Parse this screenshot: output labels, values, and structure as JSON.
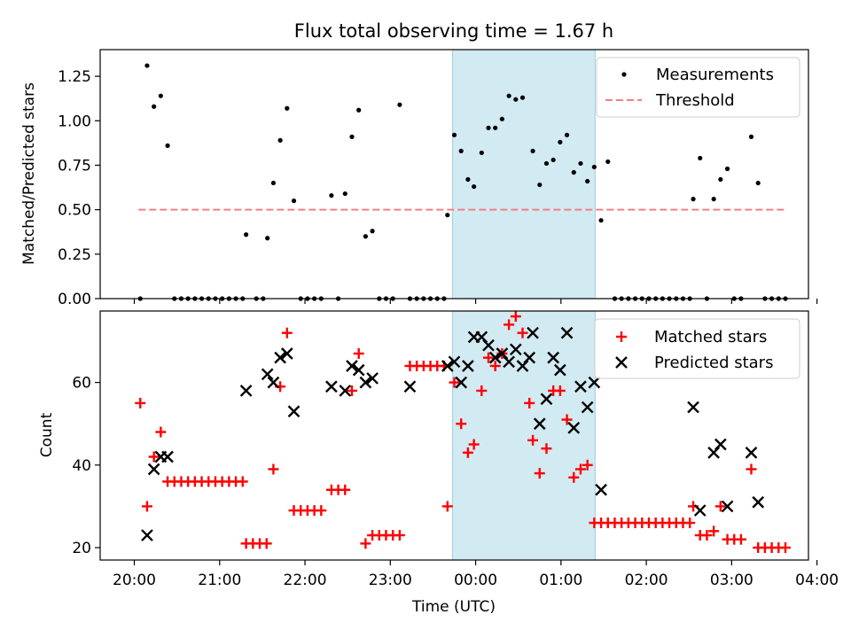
{
  "chart_data": [
    {
      "type": "scatter",
      "title": "Flux total observing time = 1.67 h",
      "xlabel": "",
      "ylabel": "Matched/Predicted stars",
      "xlim": [
        -0.4,
        7.9
      ],
      "ylim": [
        0,
        1.4
      ],
      "yticks": [
        0.0,
        0.25,
        0.5,
        0.75,
        1.0,
        1.25
      ],
      "ytick_labels": [
        "0.00",
        "0.25",
        "0.50",
        "0.75",
        "1.00",
        "1.25"
      ],
      "xticks": [
        0,
        1,
        2,
        3,
        4,
        5,
        6,
        7,
        8
      ],
      "shaded_span": [
        3.73,
        5.4
      ],
      "shaded_color": "#add8e6",
      "legend_placement": "top-right",
      "threshold": {
        "name": "Threshold",
        "y": 0.5,
        "x_range": [
          0.05,
          7.65
        ],
        "color": "#f08080"
      },
      "series": [
        {
          "name": "Measurements",
          "color": "#000000",
          "marker": "dot",
          "x": [
            0.07,
            0.15,
            0.23,
            0.31,
            0.39,
            0.47,
            0.55,
            0.63,
            0.71,
            0.79,
            0.87,
            0.95,
            1.03,
            1.11,
            1.19,
            1.27,
            1.31,
            1.43,
            1.51,
            1.56,
            1.63,
            1.71,
            1.79,
            1.87,
            1.95,
            2.03,
            2.11,
            2.19,
            2.31,
            2.39,
            2.47,
            2.55,
            2.63,
            2.71,
            2.79,
            2.87,
            2.95,
            3.03,
            3.11,
            3.23,
            3.31,
            3.39,
            3.47,
            3.55,
            3.63,
            3.67,
            3.75,
            3.83,
            3.91,
            3.98,
            4.07,
            4.15,
            4.23,
            4.31,
            4.39,
            4.47,
            4.55,
            4.67,
            4.75,
            4.83,
            4.91,
            4.99,
            5.07,
            5.15,
            5.23,
            5.31,
            5.39,
            5.47,
            5.55,
            5.63,
            5.71,
            5.79,
            5.87,
            5.95,
            6.03,
            6.11,
            6.19,
            6.27,
            6.35,
            6.43,
            6.51,
            6.55,
            6.63,
            6.71,
            6.79,
            6.87,
            6.95,
            7.03,
            7.11,
            7.23,
            7.31,
            7.39,
            7.47,
            7.55,
            7.63
          ],
          "y": [
            0.0,
            1.31,
            1.08,
            1.14,
            0.86,
            0.0,
            0.0,
            0.0,
            0.0,
            0.0,
            0.0,
            0.0,
            0.0,
            0.0,
            0.0,
            0.0,
            0.36,
            0.0,
            0.0,
            0.34,
            0.65,
            0.89,
            1.07,
            0.55,
            0.0,
            0.0,
            0.0,
            0.0,
            0.58,
            0.0,
            0.59,
            0.91,
            1.06,
            0.35,
            0.38,
            0.0,
            0.0,
            0.0,
            1.09,
            0.0,
            0.0,
            0.0,
            0.0,
            0.0,
            0.0,
            0.47,
            0.92,
            0.83,
            0.67,
            0.63,
            0.82,
            0.96,
            0.96,
            1.01,
            1.14,
            1.12,
            1.13,
            0.83,
            0.64,
            0.76,
            0.78,
            0.88,
            0.92,
            0.71,
            0.76,
            0.66,
            0.74,
            0.44,
            0.77,
            0.0,
            0.0,
            0.0,
            0.0,
            0.0,
            0.0,
            0.0,
            0.0,
            0.0,
            0.0,
            0.0,
            0.0,
            0.56,
            0.79,
            0.0,
            0.56,
            0.67,
            0.73,
            0.0,
            0.0,
            0.91,
            0.65,
            0.0,
            0.0,
            0.0,
            0.0
          ]
        }
      ]
    },
    {
      "type": "scatter",
      "title": "",
      "xlabel": "Time (UTC)",
      "ylabel": "Count",
      "xlim": [
        -0.4,
        7.9
      ],
      "ylim": [
        17,
        77.3
      ],
      "yticks": [
        20,
        40,
        60
      ],
      "ytick_labels": [
        "20",
        "40",
        "60"
      ],
      "xticks": [
        0,
        1,
        2,
        3,
        4,
        5,
        6,
        7,
        8
      ],
      "xtick_labels": [
        "20:00",
        "21:00",
        "22:00",
        "23:00",
        "00:00",
        "01:00",
        "02:00",
        "03:00",
        "04:00"
      ],
      "shaded_span": [
        3.73,
        5.4
      ],
      "shaded_color": "#add8e6",
      "legend_placement": "top-right",
      "series": [
        {
          "name": "Matched stars",
          "color": "#ff0000",
          "marker": "plus",
          "x": [
            0.07,
            0.15,
            0.23,
            0.31,
            0.39,
            0.47,
            0.55,
            0.63,
            0.71,
            0.79,
            0.87,
            0.95,
            1.03,
            1.11,
            1.19,
            1.27,
            1.31,
            1.39,
            1.47,
            1.55,
            1.63,
            1.71,
            1.79,
            1.87,
            1.95,
            2.03,
            2.11,
            2.19,
            2.31,
            2.39,
            2.47,
            2.55,
            2.63,
            2.71,
            2.79,
            2.87,
            2.95,
            3.03,
            3.11,
            3.23,
            3.31,
            3.39,
            3.47,
            3.55,
            3.63,
            3.67,
            3.75,
            3.83,
            3.91,
            3.98,
            4.07,
            4.15,
            4.23,
            4.31,
            4.39,
            4.47,
            4.55,
            4.63,
            4.67,
            4.75,
            4.83,
            4.91,
            4.99,
            5.07,
            5.15,
            5.23,
            5.31,
            5.39,
            5.47,
            5.55,
            5.63,
            5.71,
            5.79,
            5.87,
            5.95,
            6.03,
            6.11,
            6.19,
            6.27,
            6.35,
            6.43,
            6.51,
            6.55,
            6.63,
            6.71,
            6.79,
            6.87,
            6.95,
            7.03,
            7.11,
            7.23,
            7.31,
            7.39,
            7.47,
            7.55,
            7.63
          ],
          "y": [
            55,
            30,
            42,
            48,
            36,
            36,
            36,
            36,
            36,
            36,
            36,
            36,
            36,
            36,
            36,
            36,
            21,
            21,
            21,
            21,
            39,
            59,
            72,
            29,
            29,
            29,
            29,
            29,
            34,
            34,
            34,
            58,
            67,
            21,
            23,
            23,
            23,
            23,
            23,
            64,
            64,
            64,
            64,
            64,
            64,
            30,
            60,
            50,
            43,
            45,
            58,
            66,
            64,
            67,
            74,
            76,
            72,
            55,
            46,
            38,
            44,
            58,
            58,
            51,
            37,
            39,
            40,
            26,
            26,
            26,
            26,
            26,
            26,
            26,
            26,
            26,
            26,
            26,
            26,
            26,
            26,
            26,
            30,
            23,
            23,
            24,
            30,
            22,
            22,
            22,
            39,
            20,
            20,
            20,
            20,
            20
          ]
        },
        {
          "name": "Predicted stars",
          "color": "#000000",
          "marker": "x",
          "x": [
            0.15,
            0.23,
            0.31,
            0.39,
            1.31,
            1.56,
            1.63,
            1.71,
            1.79,
            1.87,
            2.31,
            2.47,
            2.55,
            2.63,
            2.71,
            2.79,
            3.23,
            3.67,
            3.75,
            3.83,
            3.91,
            3.98,
            4.07,
            4.15,
            4.23,
            4.31,
            4.39,
            4.47,
            4.55,
            4.63,
            4.67,
            4.75,
            4.83,
            4.91,
            4.99,
            5.07,
            5.15,
            5.23,
            5.31,
            5.39,
            5.47,
            6.55,
            6.63,
            6.79,
            6.87,
            6.95,
            7.23,
            7.31
          ],
          "y": [
            23,
            39,
            42,
            42,
            58,
            62,
            60,
            66,
            67,
            53,
            59,
            58,
            64,
            63,
            60,
            61,
            59,
            64,
            65,
            60,
            64,
            71,
            71,
            69,
            66,
            67,
            65,
            68,
            64,
            66,
            72,
            50,
            56,
            66,
            63,
            72,
            49,
            59,
            54,
            60,
            34,
            54,
            29,
            43,
            45,
            30,
            43,
            31
          ]
        }
      ]
    }
  ]
}
